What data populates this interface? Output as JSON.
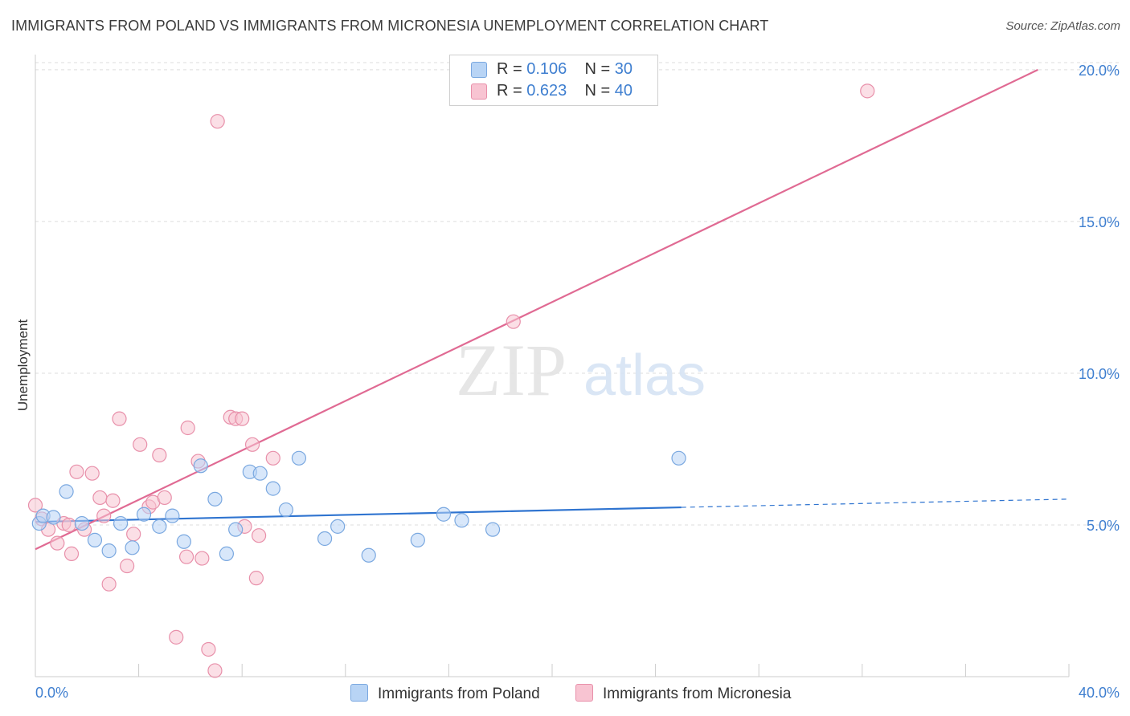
{
  "title": "IMMIGRANTS FROM POLAND VS IMMIGRANTS FROM MICRONESIA UNEMPLOYMENT CORRELATION CHART",
  "source": "Source: ZipAtlas.com",
  "watermark": {
    "zip": "ZIP",
    "atlas": "atlas"
  },
  "legend": {
    "poland": {
      "r_label": "R = ",
      "r_value": "0.106",
      "n_label": "N = ",
      "n_value": "30"
    },
    "micronesia": {
      "r_label": "R = ",
      "r_value": "0.623",
      "n_label": "N = ",
      "n_value": "40"
    }
  },
  "colors": {
    "poland_fill": "#b8d4f5",
    "poland_stroke": "#7aa8e0",
    "poland_line": "#2f74d0",
    "micronesia_fill": "#f8c4d2",
    "micronesia_stroke": "#e890aa",
    "micronesia_line": "#e06a93",
    "grid": "#dddddd",
    "tick_text": "#3f7fd0"
  },
  "chart_data": {
    "type": "scatter",
    "title": "IMMIGRANTS FROM POLAND VS IMMIGRANTS FROM MICRONESIA UNEMPLOYMENT CORRELATION CHART",
    "xlabel": "",
    "ylabel": "Unemployment",
    "xlim": [
      0,
      40
    ],
    "ylim": [
      0,
      20.5
    ],
    "x_tick_labels": [
      "0.0%",
      "40.0%"
    ],
    "y_ticks": [
      5,
      10,
      15,
      20
    ],
    "y_tick_labels": [
      "5.0%",
      "10.0%",
      "15.0%",
      "20.0%"
    ],
    "grid": true,
    "legend_position": "bottom",
    "series": [
      {
        "name": "Immigrants from Poland",
        "points": [
          [
            0.15,
            5.05
          ],
          [
            0.3,
            5.3
          ],
          [
            0.7,
            5.25
          ],
          [
            1.2,
            6.1
          ],
          [
            1.8,
            5.05
          ],
          [
            2.3,
            4.5
          ],
          [
            2.85,
            4.15
          ],
          [
            3.3,
            5.05
          ],
          [
            3.75,
            4.25
          ],
          [
            4.2,
            5.35
          ],
          [
            4.8,
            4.95
          ],
          [
            5.3,
            5.3
          ],
          [
            5.75,
            4.45
          ],
          [
            6.4,
            6.95
          ],
          [
            6.95,
            5.85
          ],
          [
            7.4,
            4.05
          ],
          [
            7.75,
            4.85
          ],
          [
            8.3,
            6.75
          ],
          [
            8.7,
            6.7
          ],
          [
            9.2,
            6.2
          ],
          [
            9.7,
            5.5
          ],
          [
            10.2,
            7.2
          ],
          [
            11.2,
            4.55
          ],
          [
            11.7,
            4.95
          ],
          [
            12.9,
            4.0
          ],
          [
            14.8,
            4.5
          ],
          [
            15.8,
            5.35
          ],
          [
            16.5,
            5.15
          ],
          [
            17.7,
            4.85
          ],
          [
            24.9,
            7.2
          ]
        ],
        "trend": {
          "x": [
            0,
            25.0
          ],
          "y": [
            5.1,
            5.58
          ],
          "extended_to": [
            40,
            5.85
          ]
        }
      },
      {
        "name": "Immigrants from Micronesia",
        "points": [
          [
            0.0,
            5.65
          ],
          [
            0.25,
            5.2
          ],
          [
            0.5,
            4.85
          ],
          [
            0.85,
            4.4
          ],
          [
            1.1,
            5.05
          ],
          [
            1.4,
            4.05
          ],
          [
            1.6,
            6.75
          ],
          [
            1.9,
            4.85
          ],
          [
            2.2,
            6.7
          ],
          [
            2.5,
            5.9
          ],
          [
            2.65,
            5.3
          ],
          [
            2.85,
            3.05
          ],
          [
            3.0,
            5.8
          ],
          [
            3.25,
            8.5
          ],
          [
            3.55,
            3.65
          ],
          [
            3.8,
            4.7
          ],
          [
            4.05,
            7.65
          ],
          [
            4.4,
            5.6
          ],
          [
            4.55,
            5.75
          ],
          [
            4.8,
            7.3
          ],
          [
            5.0,
            5.9
          ],
          [
            5.45,
            1.3
          ],
          [
            5.85,
            3.95
          ],
          [
            5.9,
            8.2
          ],
          [
            6.3,
            7.1
          ],
          [
            6.45,
            3.9
          ],
          [
            6.7,
            0.9
          ],
          [
            6.95,
            0.2
          ],
          [
            7.05,
            18.3
          ],
          [
            7.55,
            8.55
          ],
          [
            7.75,
            8.5
          ],
          [
            8.1,
            4.95
          ],
          [
            8.4,
            7.65
          ],
          [
            8.55,
            3.25
          ],
          [
            8.65,
            4.65
          ],
          [
            9.2,
            7.2
          ],
          [
            18.5,
            11.7
          ],
          [
            32.2,
            19.3
          ],
          [
            8.0,
            8.5
          ],
          [
            1.3,
            5.0
          ]
        ],
        "trend": {
          "x": [
            0,
            38.8
          ],
          "y": [
            4.2,
            20.0
          ]
        }
      }
    ]
  },
  "bottom_legend": {
    "poland_label": "Immigrants from Poland",
    "micronesia_label": "Immigrants from Micronesia"
  }
}
